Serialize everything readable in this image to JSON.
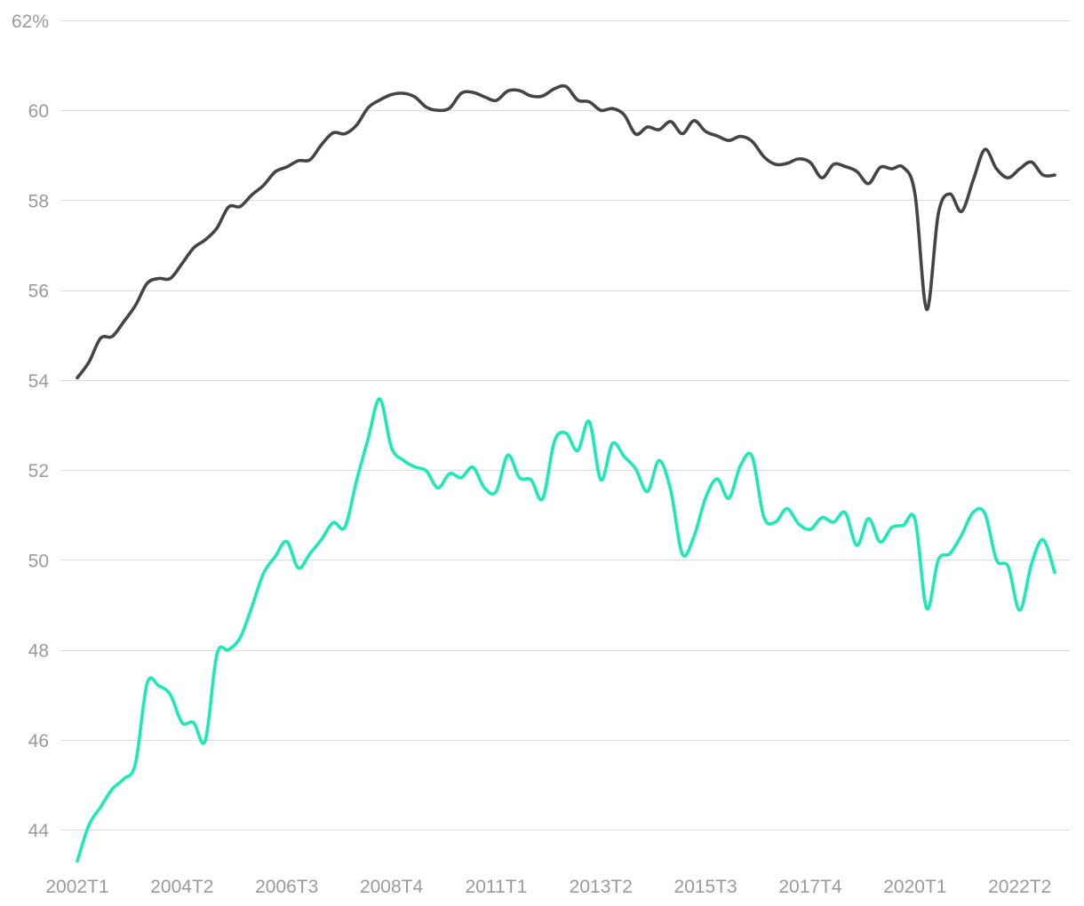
{
  "chart_data": {
    "type": "line",
    "title": "",
    "xlabel": "",
    "ylabel": "",
    "y_unit_suffix": "%",
    "ylim": [
      43,
      62
    ],
    "yticks": [
      44,
      46,
      48,
      50,
      52,
      54,
      56,
      58,
      60,
      62
    ],
    "ytick_labels": [
      "44",
      "46",
      "48",
      "50",
      "52",
      "54",
      "56",
      "58",
      "60",
      "62%"
    ],
    "grid": "horizontal",
    "x_categories": [
      "2002T1",
      "2002T2",
      "2002T3",
      "2002T4",
      "2003T1",
      "2003T2",
      "2003T3",
      "2003T4",
      "2004T1",
      "2004T2",
      "2004T3",
      "2004T4",
      "2005T1",
      "2005T2",
      "2005T3",
      "2005T4",
      "2006T1",
      "2006T2",
      "2006T3",
      "2006T4",
      "2007T1",
      "2007T2",
      "2007T3",
      "2007T4",
      "2008T1",
      "2008T2",
      "2008T3",
      "2008T4",
      "2009T1",
      "2009T2",
      "2009T3",
      "2009T4",
      "2010T1",
      "2010T2",
      "2010T3",
      "2010T4",
      "2011T1",
      "2011T2",
      "2011T3",
      "2011T4",
      "2012T1",
      "2012T2",
      "2012T3",
      "2012T4",
      "2013T1",
      "2013T2",
      "2013T3",
      "2013T4",
      "2014T1",
      "2014T2",
      "2014T3",
      "2014T4",
      "2015T1",
      "2015T2",
      "2015T3",
      "2015T4",
      "2016T1",
      "2016T2",
      "2016T3",
      "2016T4",
      "2017T1",
      "2017T2",
      "2017T3",
      "2017T4",
      "2018T1",
      "2018T2",
      "2018T3",
      "2018T4",
      "2019T1",
      "2019T2",
      "2019T3",
      "2019T4",
      "2020T1",
      "2020T2",
      "2020T3",
      "2020T4",
      "2021T1",
      "2021T2",
      "2021T3",
      "2021T4",
      "2022T1",
      "2022T2",
      "2022T3",
      "2022T4",
      "2023T1"
    ],
    "xtick_labels": [
      "2002T1",
      "2004T2",
      "2006T3",
      "2008T4",
      "2011T1",
      "2013T2",
      "2015T3",
      "2017T4",
      "2020T1",
      "2022T2"
    ],
    "series": [
      {
        "color": "#444444",
        "values": [
          54.05,
          54.4,
          54.93,
          54.97,
          55.3,
          55.66,
          56.15,
          56.26,
          56.26,
          56.59,
          56.94,
          57.12,
          57.38,
          57.85,
          57.86,
          58.12,
          58.33,
          58.63,
          58.74,
          58.88,
          58.9,
          59.24,
          59.5,
          59.48,
          59.67,
          60.06,
          60.23,
          60.35,
          60.38,
          60.3,
          60.07,
          60.0,
          60.05,
          60.38,
          60.4,
          60.3,
          60.22,
          60.43,
          60.44,
          60.32,
          60.32,
          60.48,
          60.53,
          60.23,
          60.19,
          60.0,
          60.04,
          59.9,
          59.47,
          59.63,
          59.57,
          59.75,
          59.48,
          59.77,
          59.53,
          59.43,
          59.33,
          59.42,
          59.31,
          58.97,
          58.8,
          58.82,
          58.92,
          58.84,
          58.5,
          58.8,
          58.75,
          58.64,
          58.37,
          58.73,
          58.7,
          58.73,
          58.13,
          55.57,
          57.7,
          58.14,
          57.75,
          58.45,
          59.13,
          58.7,
          58.5,
          58.7,
          58.85,
          58.56,
          58.56
        ]
      },
      {
        "color": "#1de9b6",
        "values": [
          43.3,
          44.1,
          44.5,
          44.9,
          45.13,
          45.47,
          47.25,
          47.2,
          47.0,
          46.38,
          46.38,
          45.98,
          47.9,
          48.0,
          48.27,
          48.95,
          49.7,
          50.07,
          50.41,
          49.82,
          50.14,
          50.46,
          50.83,
          50.73,
          51.76,
          52.7,
          53.58,
          52.5,
          52.22,
          52.07,
          51.98,
          51.6,
          51.92,
          51.83,
          52.06,
          51.6,
          51.52,
          52.33,
          51.83,
          51.78,
          51.36,
          52.63,
          52.82,
          52.43,
          53.08,
          51.78,
          52.59,
          52.3,
          52.02,
          51.52,
          52.21,
          51.55,
          50.13,
          50.52,
          51.38,
          51.8,
          51.37,
          52.1,
          52.3,
          50.96,
          50.84,
          51.14,
          50.8,
          50.68,
          50.94,
          50.84,
          51.05,
          50.32,
          50.92,
          50.4,
          50.72,
          50.77,
          50.9,
          48.92,
          50.0,
          50.14,
          50.55,
          51.06,
          51.03,
          50.0,
          49.85,
          48.88,
          49.9,
          50.45,
          49.72
        ]
      }
    ]
  }
}
